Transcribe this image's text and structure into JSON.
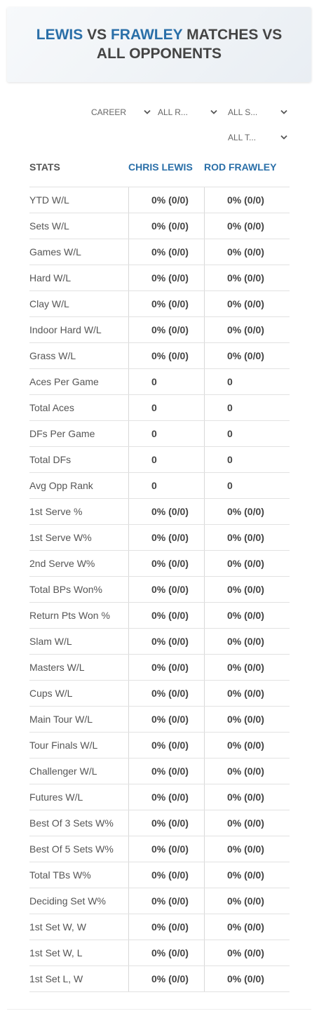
{
  "header": {
    "title": [
      "LEWIS",
      "VS",
      "FRAWLEY",
      "MATCHES VS ALL OPPONENTS"
    ]
  },
  "filters": [
    "CAREER",
    "ALL R...",
    "ALL S...",
    "ALL T..."
  ],
  "table": {
    "columns": [
      "STATS",
      "CHRIS LEWIS",
      "ROD FRAWLEY"
    ],
    "rows": [
      [
        "YTD W/L",
        "0% (0/0)",
        "0% (0/0)"
      ],
      [
        "Sets W/L",
        "0% (0/0)",
        "0% (0/0)"
      ],
      [
        "Games W/L",
        "0% (0/0)",
        "0% (0/0)"
      ],
      [
        "Hard W/L",
        "0% (0/0)",
        "0% (0/0)"
      ],
      [
        "Clay W/L",
        "0% (0/0)",
        "0% (0/0)"
      ],
      [
        "Indoor Hard W/L",
        "0% (0/0)",
        "0% (0/0)"
      ],
      [
        "Grass W/L",
        "0% (0/0)",
        "0% (0/0)"
      ],
      [
        "Aces Per Game",
        "0",
        "0"
      ],
      [
        "Total Aces",
        "0",
        "0"
      ],
      [
        "DFs Per Game",
        "0",
        "0"
      ],
      [
        "Total DFs",
        "0",
        "0"
      ],
      [
        "Avg Opp Rank",
        "0",
        "0"
      ],
      [
        "1st Serve %",
        "0% (0/0)",
        "0% (0/0)"
      ],
      [
        "1st Serve W%",
        "0% (0/0)",
        "0% (0/0)"
      ],
      [
        "2nd Serve W%",
        "0% (0/0)",
        "0% (0/0)"
      ],
      [
        "Total BPs Won%",
        "0% (0/0)",
        "0% (0/0)"
      ],
      [
        "Return Pts Won %",
        "0% (0/0)",
        "0% (0/0)"
      ],
      [
        "Slam W/L",
        "0% (0/0)",
        "0% (0/0)"
      ],
      [
        "Masters W/L",
        "0% (0/0)",
        "0% (0/0)"
      ],
      [
        "Cups W/L",
        "0% (0/0)",
        "0% (0/0)"
      ],
      [
        "Main Tour W/L",
        "0% (0/0)",
        "0% (0/0)"
      ],
      [
        "Tour Finals W/L",
        "0% (0/0)",
        "0% (0/0)"
      ],
      [
        "Challenger W/L",
        "0% (0/0)",
        "0% (0/0)"
      ],
      [
        "Futures W/L",
        "0% (0/0)",
        "0% (0/0)"
      ],
      [
        "Best Of 3 Sets W%",
        "0% (0/0)",
        "0% (0/0)"
      ],
      [
        "Best Of 5 Sets W%",
        "0% (0/0)",
        "0% (0/0)"
      ],
      [
        "Total TBs W%",
        "0% (0/0)",
        "0% (0/0)"
      ],
      [
        "Deciding Set W%",
        "0% (0/0)",
        "0% (0/0)"
      ],
      [
        "1st Set W, W",
        "0% (0/0)",
        "0% (0/0)"
      ],
      [
        "1st Set W, L",
        "0% (0/0)",
        "0% (0/0)"
      ],
      [
        "1st Set L, W",
        "0% (0/0)",
        "0% (0/0)"
      ]
    ]
  }
}
